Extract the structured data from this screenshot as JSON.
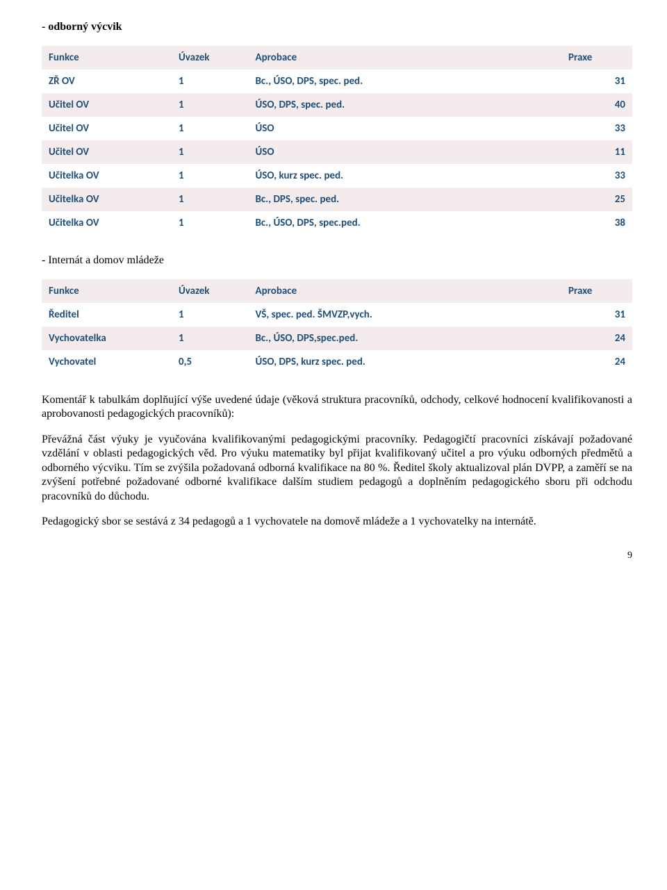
{
  "heading1": "- odborný výcvik",
  "heading2": "- Internát a domov mládeže",
  "table1": {
    "columns": [
      "Funkce",
      "Úvazek",
      "Aprobace",
      "Praxe"
    ],
    "rows": [
      [
        "ZŘ OV",
        "1",
        "Bc., ÚSO, DPS, spec. ped.",
        "31"
      ],
      [
        "Učitel OV",
        "1",
        "ÚSO, DPS, spec. ped.",
        "40"
      ],
      [
        "Učitel OV",
        "1",
        "ÚSO",
        "33"
      ],
      [
        "Učitel OV",
        "1",
        "ÚSO",
        "11"
      ],
      [
        "Učitelka OV",
        "1",
        "ÚSO, kurz spec. ped.",
        "33"
      ],
      [
        "Učitelka OV",
        "1",
        "Bc., DPS, spec. ped.",
        "25"
      ],
      [
        "Učitelka OV",
        "1",
        "Bc., ÚSO, DPS, spec.ped.",
        "38"
      ]
    ]
  },
  "table2": {
    "columns": [
      "Funkce",
      "Úvazek",
      "Aprobace",
      "Praxe"
    ],
    "rows": [
      [
        "Ředitel",
        "1",
        "VŠ, spec. ped. ŠMVZP,vych.",
        "31"
      ],
      [
        "Vychovatelka",
        "1",
        "Bc., ÚSO, DPS,spec.ped.",
        "24"
      ],
      [
        "Vychovatel",
        "0,5",
        "ÚSO, DPS, kurz spec. ped.",
        "24"
      ]
    ]
  },
  "body": {
    "p1": "Komentář k tabulkám doplňující výše uvedené údaje (věková struktura pracovníků, odchody, celkové hodnocení kvalifikovanosti a aprobovanosti pedagogických  pracovníků):",
    "p2": "Převážná část výuky je vyučována kvalifikovanými pedagogickými pracovníky. Pedagogičtí pracovníci získávají požadované vzdělání v oblasti pedagogických věd. Pro výuku matematiky byl přijat kvalifikovaný učitel a pro výuku odborných předmětů a odborného výcviku. Tím se zvýšila požadovaná odborná kvalifikace na 80 %. Ředitel školy aktualizoval plán DVPP, a zaměří se na zvýšení potřebné požadované odborné kvalifikace dalším studiem pedagogů a doplněním pedagogického sboru při odchodu pracovníků do důchodu.",
    "p3": "Pedagogický sbor se sestává z 34 pedagogů a 1 vychovatele na domově mládeže a 1 vychovatelky na internátě."
  },
  "page_number": "9",
  "colors": {
    "table_text": "#1f4e79",
    "band": "#f4ecec",
    "body_text": "#000000",
    "background": "#ffffff"
  }
}
